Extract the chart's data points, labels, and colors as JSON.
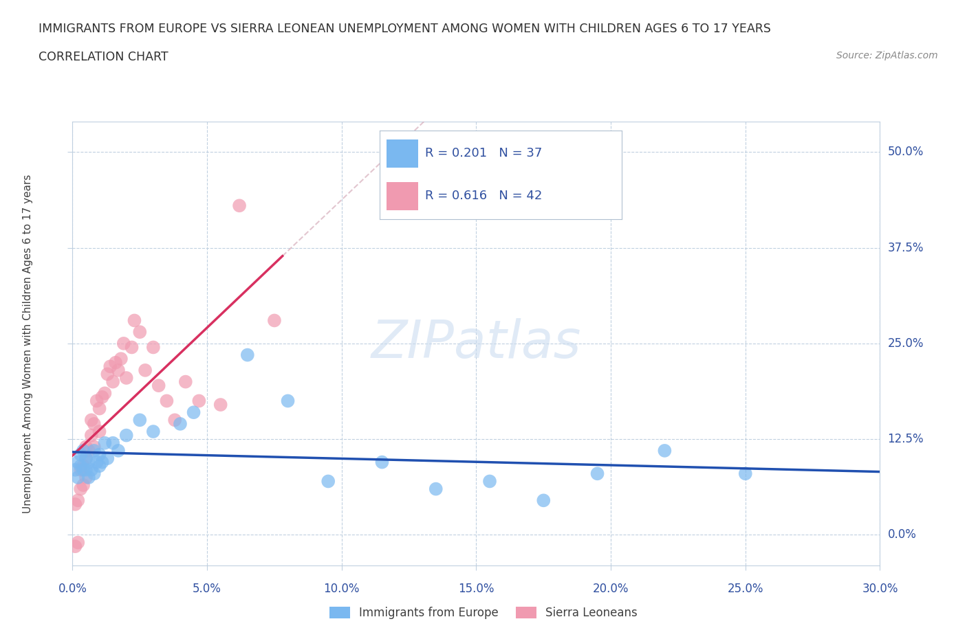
{
  "title_line1": "IMMIGRANTS FROM EUROPE VS SIERRA LEONEAN UNEMPLOYMENT AMONG WOMEN WITH CHILDREN AGES 6 TO 17 YEARS",
  "title_line2": "CORRELATION CHART",
  "source_text": "Source: ZipAtlas.com",
  "xmin": 0.0,
  "xmax": 0.3,
  "ymin": -0.04,
  "ymax": 0.54,
  "watermark": "ZIPatlas",
  "europe_scatter_x": [
    0.001,
    0.002,
    0.002,
    0.003,
    0.003,
    0.004,
    0.004,
    0.005,
    0.005,
    0.006,
    0.006,
    0.007,
    0.008,
    0.008,
    0.009,
    0.01,
    0.01,
    0.011,
    0.012,
    0.013,
    0.015,
    0.017,
    0.02,
    0.025,
    0.03,
    0.04,
    0.045,
    0.065,
    0.08,
    0.095,
    0.115,
    0.135,
    0.155,
    0.175,
    0.195,
    0.22,
    0.25
  ],
  "europe_scatter_y": [
    0.085,
    0.095,
    0.075,
    0.09,
    0.105,
    0.085,
    0.11,
    0.085,
    0.1,
    0.075,
    0.095,
    0.085,
    0.11,
    0.08,
    0.095,
    0.09,
    0.105,
    0.095,
    0.12,
    0.1,
    0.12,
    0.11,
    0.13,
    0.15,
    0.135,
    0.145,
    0.16,
    0.235,
    0.175,
    0.07,
    0.095,
    0.06,
    0.07,
    0.045,
    0.08,
    0.11,
    0.08
  ],
  "sierra_scatter_x": [
    0.001,
    0.001,
    0.002,
    0.002,
    0.003,
    0.003,
    0.004,
    0.004,
    0.005,
    0.005,
    0.005,
    0.006,
    0.007,
    0.007,
    0.008,
    0.008,
    0.009,
    0.01,
    0.01,
    0.011,
    0.012,
    0.013,
    0.014,
    0.015,
    0.016,
    0.017,
    0.018,
    0.019,
    0.02,
    0.022,
    0.023,
    0.025,
    0.027,
    0.03,
    0.032,
    0.035,
    0.038,
    0.042,
    0.047,
    0.055,
    0.062,
    0.075
  ],
  "sierra_scatter_y": [
    -0.015,
    0.04,
    0.045,
    -0.01,
    0.06,
    0.085,
    0.065,
    0.09,
    0.075,
    0.1,
    0.115,
    0.11,
    0.13,
    0.15,
    0.115,
    0.145,
    0.175,
    0.135,
    0.165,
    0.18,
    0.185,
    0.21,
    0.22,
    0.2,
    0.225,
    0.215,
    0.23,
    0.25,
    0.205,
    0.245,
    0.28,
    0.265,
    0.215,
    0.245,
    0.195,
    0.175,
    0.15,
    0.2,
    0.175,
    0.17,
    0.43,
    0.28
  ],
  "europe_color": "#7ab8f0",
  "sierra_color": "#f09ab0",
  "europe_trend_color": "#2050b0",
  "sierra_trend_color": "#d83060",
  "grid_color": "#c0d0e0",
  "title_color": "#303030",
  "label_color": "#3050a0",
  "background_color": "#ffffff",
  "legend_eu_label": "R = 0.201   N = 37",
  "legend_si_label": "R = 0.616   N = 42",
  "bottom_legend_eu": "Immigrants from Europe",
  "bottom_legend_si": "Sierra Leoneans"
}
